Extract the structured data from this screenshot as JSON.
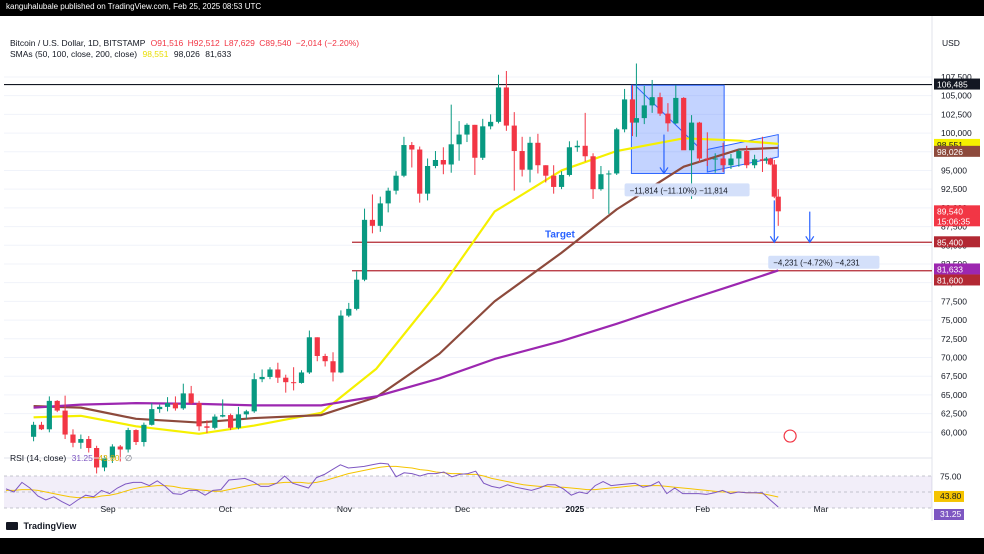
{
  "header": {
    "publisher": "kanguhalubale published on TradingView.com, Feb 25, 2025 08:53 UTC",
    "symbol": "Bitcoin / U.S. Dollar, 1D, BITSTAMP",
    "ohlc": {
      "o": "O91,516",
      "h": "H92,512",
      "l": "L87,629",
      "c": "C89,540",
      "chg": "−2,014 (−2.20%)"
    },
    "sma_label": "SMAs (50, 100, close, 200, close)",
    "sma_values": [
      "98,551",
      "98,026",
      "81,633"
    ],
    "currency": "USD"
  },
  "rsi_header": {
    "label": "RSI (14, close)",
    "v1": "31.25",
    "v2": "43.80",
    "v3": "∅"
  },
  "footer": {
    "brand": "TradingView"
  },
  "colors": {
    "up": "#089981",
    "down": "#f23645",
    "sma50": "#f5f000",
    "sma100": "#8d4a3c",
    "sma200": "#9c27b0",
    "rsi": "#7e57c2",
    "target": "#2962ff",
    "level_line": "#b22833"
  },
  "chart_data": [
    {
      "type": "candlestick",
      "title": "Bitcoin / U.S. Dollar, 1D, BITSTAMP",
      "xlabel": "",
      "ylabel": "USD",
      "x_ticks": [
        "Sep",
        "Oct",
        "Nov",
        "Dec",
        "2025",
        "Feb",
        "Mar"
      ],
      "y_ticks": [
        "107,500",
        "105,000",
        "102,500",
        "100,000",
        "97,500",
        "95,000",
        "92,500",
        "90,000",
        "87,500",
        "85,000",
        "82,500",
        "80,000",
        "77,500",
        "75,000",
        "72,500",
        "70,000",
        "67,500",
        "65,000",
        "62,500",
        "60,000"
      ],
      "ylim": [
        57500,
        109500
      ],
      "series": [
        {
          "name": "SMA 50",
          "x": [
            "Aug 20",
            "Sep 1",
            "Sep 15",
            "Oct 1",
            "Oct 15",
            "Nov 1",
            "Nov 15",
            "Dec 1",
            "Dec 15",
            "Jan 1",
            "Jan 15",
            "Feb 1",
            "Feb 15",
            "Feb 25"
          ],
          "values": [
            62000,
            62200,
            60800,
            59800,
            60900,
            62600,
            68500,
            79000,
            89500,
            95000,
            97600,
            99300,
            99000,
            98551
          ]
        },
        {
          "name": "SMA 100",
          "x": [
            "Aug 20",
            "Sep 1",
            "Sep 15",
            "Oct 1",
            "Oct 15",
            "Nov 1",
            "Nov 15",
            "Dec 1",
            "Dec 15",
            "Jan 1",
            "Jan 15",
            "Feb 1",
            "Feb 15",
            "Feb 25"
          ],
          "values": [
            63500,
            63300,
            61800,
            61300,
            61900,
            62300,
            64700,
            70500,
            77500,
            84000,
            89800,
            95500,
            97800,
            98026
          ]
        },
        {
          "name": "SMA 200",
          "x": [
            "Aug 20",
            "Sep 1",
            "Sep 15",
            "Oct 1",
            "Oct 15",
            "Nov 1",
            "Nov 15",
            "Dec 1",
            "Dec 15",
            "Jan 1",
            "Jan 15",
            "Feb 1",
            "Feb 15",
            "Feb 25"
          ],
          "values": [
            63300,
            63700,
            63900,
            63800,
            63600,
            63600,
            64800,
            67200,
            69800,
            72200,
            74500,
            77500,
            79900,
            81633
          ]
        }
      ],
      "price_labels": [
        {
          "value": "106,485",
          "color": "#131722"
        },
        {
          "value": "98,551",
          "color": "#f5f000"
        },
        {
          "value": "98,026",
          "color": "#8d4a3c"
        },
        {
          "value": "89,540",
          "color": "#f23645"
        },
        {
          "value": "15:06:35",
          "color": "#f23645"
        },
        {
          "value": "85,400",
          "color": "#b22833"
        },
        {
          "value": "81,633",
          "color": "#9c27b0"
        },
        {
          "value": "81,600",
          "color": "#b22833"
        }
      ],
      "levels": [
        {
          "value": 106485,
          "color": "#131722"
        },
        {
          "value": 85400,
          "color": "#b22833"
        },
        {
          "value": 81600,
          "color": "#b22833"
        }
      ],
      "annotations": {
        "target_label": "Target",
        "measure1": "−11,814 (−11.10%) −11,814",
        "measure2": "−4,231 (−4.72%) −4,231"
      },
      "candles": [
        [
          "Aug 20",
          59400,
          61400,
          58800,
          61000
        ],
        [
          "Aug 22",
          61000,
          61400,
          60300,
          60400
        ],
        [
          "Aug 24",
          60400,
          64800,
          60000,
          64200
        ],
        [
          "Aug 26",
          64200,
          64300,
          62700,
          62900
        ],
        [
          "Aug 28",
          62900,
          64900,
          59100,
          59700
        ],
        [
          "Aug 30",
          59700,
          60400,
          58000,
          58600
        ],
        [
          "Sep 1",
          58600,
          59700,
          57800,
          59100
        ],
        [
          "Sep 3",
          59100,
          59500,
          57300,
          57900
        ],
        [
          "Sep 5",
          57900,
          58200,
          54500,
          55300
        ],
        [
          "Sep 7",
          55300,
          56800,
          54800,
          56500
        ],
        [
          "Sep 9",
          56500,
          58400,
          55900,
          58100
        ],
        [
          "Sep 11",
          58100,
          58300,
          56100,
          57700
        ],
        [
          "Sep 13",
          57700,
          60600,
          57300,
          60300
        ],
        [
          "Sep 15",
          60300,
          60400,
          58300,
          58700
        ],
        [
          "Sep 17",
          58700,
          61300,
          58100,
          61000
        ],
        [
          "Sep 19",
          61000,
          63900,
          60900,
          63100
        ],
        [
          "Sep 21",
          63100,
          63700,
          62600,
          63400
        ],
        [
          "Sep 23",
          63400,
          64700,
          62800,
          63900
        ],
        [
          "Sep 25",
          63900,
          64800,
          62900,
          63200
        ],
        [
          "Sep 27",
          63200,
          66500,
          63000,
          65200
        ],
        [
          "Sep 29",
          65200,
          66200,
          63700,
          63900
        ],
        [
          "Oct 1",
          63900,
          64200,
          60200,
          60800
        ],
        [
          "Oct 3",
          60800,
          61600,
          59900,
          60600
        ],
        [
          "Oct 5",
          60600,
          62400,
          60400,
          62100
        ],
        [
          "Oct 7",
          62100,
          64400,
          62000,
          62300
        ],
        [
          "Oct 9",
          62300,
          62500,
          60300,
          60600
        ],
        [
          "Oct 11",
          60600,
          63400,
          60400,
          62400
        ],
        [
          "Oct 13",
          62400,
          63000,
          61800,
          62800
        ],
        [
          "Oct 15",
          62800,
          67900,
          62600,
          67100
        ],
        [
          "Oct 17",
          67100,
          68400,
          66700,
          67400
        ],
        [
          "Oct 19",
          67400,
          68700,
          67100,
          68400
        ],
        [
          "Oct 21",
          68400,
          69300,
          66600,
          67300
        ],
        [
          "Oct 23",
          67300,
          67700,
          65300,
          66700
        ],
        [
          "Oct 25",
          66700,
          68700,
          65600,
          66600
        ],
        [
          "Oct 27",
          66600,
          68300,
          66500,
          68000
        ],
        [
          "Oct 29",
          68000,
          73600,
          67800,
          72700
        ],
        [
          "Oct 31",
          72700,
          72700,
          69500,
          70200
        ],
        [
          "Nov 2",
          70200,
          70500,
          68800,
          69500
        ],
        [
          "Nov 4",
          69500,
          70700,
          66800,
          68000
        ],
        [
          "Nov 6",
          68000,
          76300,
          67900,
          75600
        ],
        [
          "Nov 8",
          75600,
          77300,
          75400,
          76500
        ],
        [
          "Nov 10",
          76500,
          81500,
          76300,
          80400
        ],
        [
          "Nov 12",
          80400,
          89900,
          80200,
          88400
        ],
        [
          "Nov 14",
          88400,
          91800,
          86600,
          87600
        ],
        [
          "Nov 16",
          87600,
          91500,
          86800,
          90600
        ],
        [
          "Nov 18",
          90600,
          92700,
          89400,
          92300
        ],
        [
          "Nov 20",
          92300,
          94900,
          91800,
          94300
        ],
        [
          "Nov 22",
          94300,
          99500,
          94100,
          98400
        ],
        [
          "Nov 24",
          98400,
          98800,
          95400,
          97800
        ],
        [
          "Nov 26",
          97800,
          98200,
          90700,
          91900
        ],
        [
          "Nov 28",
          91900,
          96600,
          91000,
          95600
        ],
        [
          "Nov 30",
          95600,
          97600,
          95300,
          96400
        ],
        [
          "Dec 2",
          96400,
          98100,
          94500,
          95800
        ],
        [
          "Dec 4",
          95800,
          103800,
          94700,
          98500
        ],
        [
          "Dec 6",
          98500,
          101600,
          96300,
          99800
        ],
        [
          "Dec 8",
          99800,
          101300,
          98800,
          101100
        ],
        [
          "Dec 10",
          101100,
          101100,
          94400,
          96700
        ],
        [
          "Dec 12",
          96700,
          101900,
          96400,
          100900
        ],
        [
          "Dec 14",
          100900,
          102500,
          100500,
          101500
        ],
        [
          "Dec 16",
          101500,
          107800,
          101300,
          106100
        ],
        [
          "Dec 18",
          106100,
          108300,
          100300,
          101000
        ],
        [
          "Dec 20",
          101000,
          102800,
          92300,
          97600
        ],
        [
          "Dec 22",
          97600,
          99500,
          94200,
          95100
        ],
        [
          "Dec 24",
          95100,
          99500,
          93400,
          98700
        ],
        [
          "Dec 26",
          98700,
          99900,
          94600,
          95700
        ],
        [
          "Dec 28",
          95700,
          95700,
          93400,
          94300
        ],
        [
          "Dec 30",
          94300,
          95700,
          91900,
          92800
        ],
        [
          "Jan 1",
          92800,
          94900,
          92500,
          94400
        ],
        [
          "Jan 3",
          94400,
          98900,
          94200,
          98100
        ],
        [
          "Jan 5",
          98100,
          99000,
          97500,
          98300
        ],
        [
          "Jan 7",
          98300,
          102700,
          96200,
          96900
        ],
        [
          "Jan 9",
          96900,
          97300,
          91200,
          92500
        ],
        [
          "Jan 11",
          92500,
          95600,
          92300,
          94500
        ],
        [
          "Jan 13",
          94500,
          95000,
          89200,
          94600
        ],
        [
          "Jan 15",
          94600,
          100700,
          94400,
          100500
        ],
        [
          "Jan 17",
          100500,
          105900,
          100100,
          104500
        ],
        [
          "Jan 19",
          104500,
          106400,
          99600,
          101400
        ],
        [
          "Jan 20",
          101400,
          109300,
          99500,
          102000
        ],
        [
          "Jan 22",
          102000,
          106300,
          101200,
          103700
        ],
        [
          "Jan 24",
          103700,
          107100,
          102700,
          104800
        ],
        [
          "Jan 26",
          104800,
          105400,
          102300,
          102600
        ],
        [
          "Jan 28",
          102600,
          104000,
          100200,
          101300
        ],
        [
          "Jan 30",
          101300,
          106400,
          101200,
          104700
        ],
        [
          "Feb 1",
          104700,
          104800,
          97800,
          97700
        ],
        [
          "Feb 3",
          97700,
          102400,
          91200,
          101400
        ],
        [
          "Feb 5",
          101400,
          101500,
          96100,
          96600
        ],
        [
          "Feb 7",
          96600,
          100100,
          95600,
          96500
        ],
        [
          "Feb 9",
          96500,
          97300,
          94700,
          96600
        ],
        [
          "Feb 11",
          96600,
          98700,
          94800,
          95700
        ],
        [
          "Feb 13",
          95700,
          97200,
          95200,
          96600
        ],
        [
          "Feb 15",
          96600,
          97900,
          95500,
          97600
        ],
        [
          "Feb 17",
          97600,
          98300,
          95300,
          95700
        ],
        [
          "Feb 19",
          95700,
          97100,
          95300,
          96500
        ],
        [
          "Feb 21",
          96500,
          99500,
          94800,
          96300
        ],
        [
          "Feb 22",
          96300,
          96800,
          95900,
          96600
        ],
        [
          "Feb 23",
          96600,
          96700,
          95700,
          95800
        ],
        [
          "Feb 24",
          95800,
          96400,
          91300,
          91500
        ],
        [
          "Feb 25",
          91500,
          92500,
          87600,
          89540
        ]
      ]
    },
    {
      "type": "line",
      "title": "RSI (14, close)",
      "xlabel": "",
      "ylabel": "",
      "y_ticks": [
        "75.00",
        "43.80",
        "31.25"
      ],
      "ylim": [
        20,
        85
      ],
      "series": [
        {
          "name": "RSI",
          "values": [
            54,
            50,
            62,
            55,
            45,
            40,
            44,
            38,
            33,
            40,
            46,
            44,
            52,
            48,
            55,
            60,
            62,
            62,
            58,
            64,
            57,
            48,
            47,
            52,
            52,
            46,
            52,
            53,
            65,
            66,
            67,
            63,
            57,
            57,
            61,
            70,
            61,
            58,
            55,
            68,
            72,
            78,
            84,
            80,
            81,
            82,
            84,
            86,
            85,
            69,
            74,
            73,
            70,
            73,
            73,
            75,
            69,
            72,
            73,
            76,
            61,
            57,
            55,
            59,
            56,
            54,
            52,
            55,
            59,
            59,
            54,
            46,
            50,
            48,
            58,
            63,
            58,
            59,
            60,
            61,
            56,
            58,
            63,
            48,
            55,
            48,
            48,
            48,
            47,
            49,
            52,
            48,
            50,
            49,
            49,
            49,
            40,
            31.25
          ]
        },
        {
          "name": "RSI-based MA",
          "values": [
            52,
            52,
            53,
            53,
            52,
            50,
            48,
            46,
            44,
            43,
            43,
            43,
            45,
            46,
            48,
            51,
            54,
            56,
            57,
            58,
            58,
            57,
            55,
            54,
            53,
            52,
            51,
            51,
            53,
            55,
            57,
            59,
            60,
            60,
            61,
            62,
            62,
            62,
            61,
            62,
            64,
            67,
            70,
            73,
            75,
            77,
            79,
            81,
            82,
            82,
            81,
            80,
            78,
            77,
            75,
            74,
            73,
            73,
            72,
            72,
            70,
            67,
            65,
            63,
            61,
            59,
            58,
            57,
            57,
            56,
            56,
            55,
            54,
            53,
            53,
            54,
            55,
            56,
            57,
            58,
            58,
            58,
            58,
            57,
            56,
            55,
            54,
            53,
            52,
            51,
            50,
            50,
            50,
            49,
            49,
            48,
            46,
            43.8
          ]
        }
      ]
    }
  ]
}
